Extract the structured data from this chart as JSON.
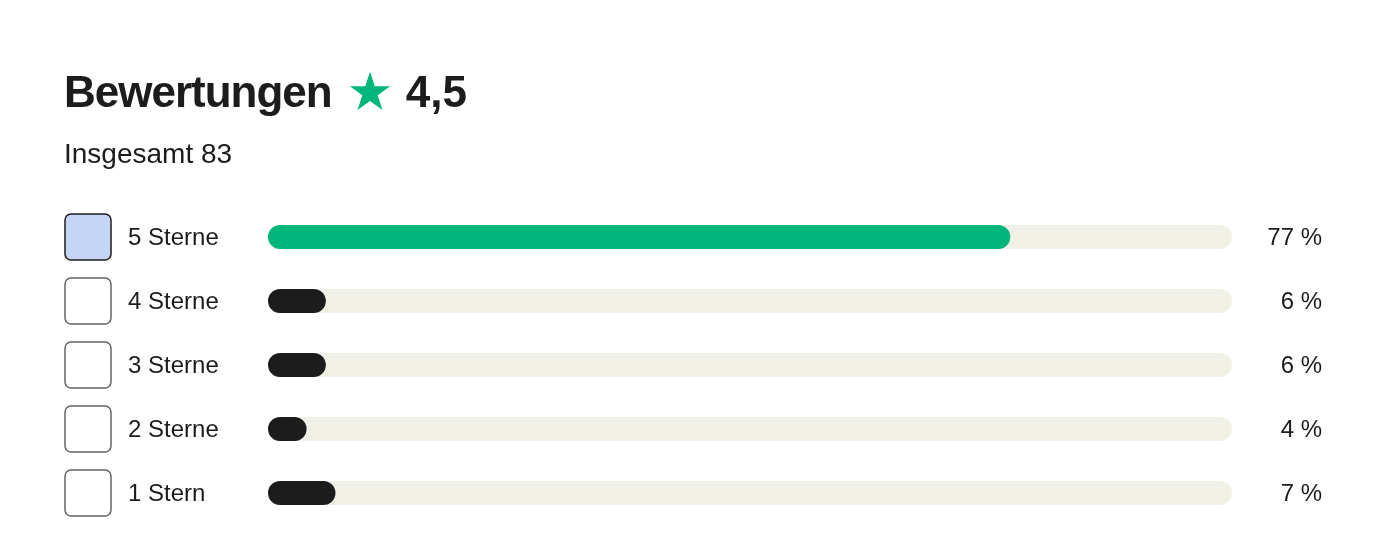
{
  "chart_data": {
    "type": "bar",
    "orientation": "horizontal",
    "title": "Bewertungen",
    "annotations": [
      "4,5"
    ],
    "subtitle": "Insgesamt 83",
    "categories": [
      "5 Sterne",
      "4 Sterne",
      "3 Sterne",
      "2 Sterne",
      "1 Stern"
    ],
    "values": [
      77,
      6,
      6,
      4,
      7
    ],
    "colors": [
      "#00b67a",
      "#1c1c1c",
      "#1c1c1c",
      "#1c1c1c",
      "#1c1c1c"
    ],
    "value_labels": [
      "77 %",
      "6 %",
      "6 %",
      "4 %",
      "7 %"
    ],
    "xlim": [
      0,
      100
    ],
    "tick_labels": false
  }
}
